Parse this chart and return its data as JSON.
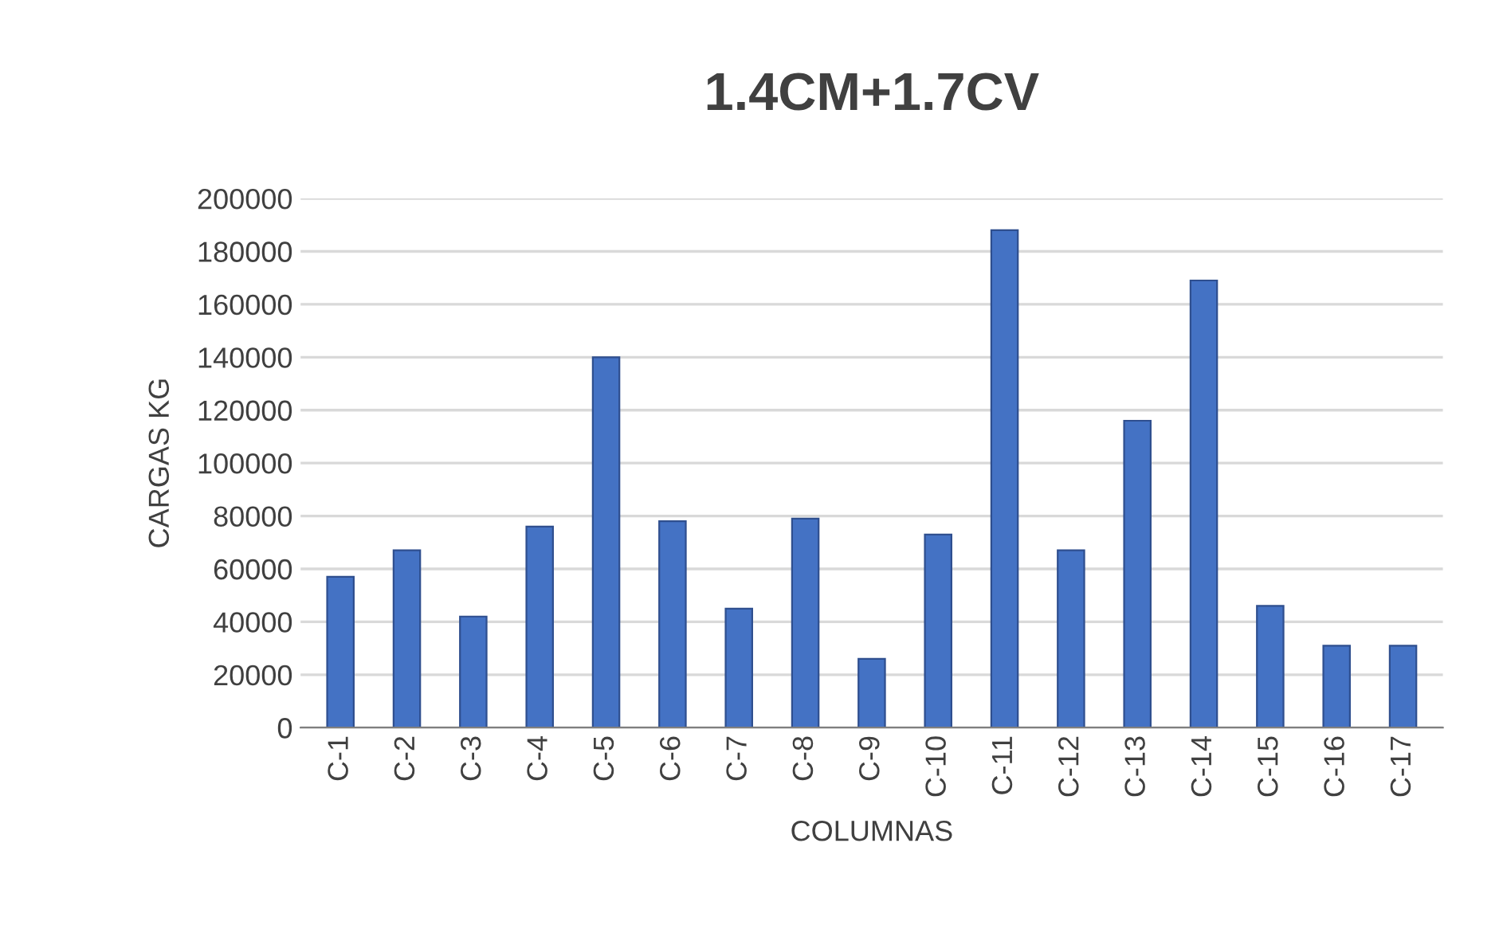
{
  "chart_data": {
    "type": "bar",
    "title": "1.4CM+1.7CV",
    "xlabel": "COLUMNAS",
    "ylabel": "CARGAS KG",
    "categories": [
      "C-1",
      "C-2",
      "C-3",
      "C-4",
      "C-5",
      "C-6",
      "C-7",
      "C-8",
      "C-9",
      "C-10",
      "C-11",
      "C-12",
      "C-13",
      "C-14",
      "C-15",
      "C-16",
      "C-17"
    ],
    "values": [
      57000,
      67000,
      42000,
      76000,
      140000,
      78000,
      45000,
      79000,
      26000,
      73000,
      188000,
      67000,
      116000,
      169000,
      46000,
      31000,
      31000
    ],
    "color": "#4472c4",
    "ylim": [
      0,
      200000
    ],
    "yticks": [
      0,
      20000,
      40000,
      60000,
      80000,
      100000,
      120000,
      140000,
      160000,
      180000,
      200000
    ],
    "grid": "y"
  }
}
